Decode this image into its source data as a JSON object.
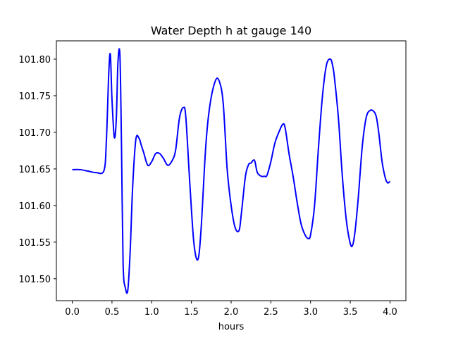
{
  "chart_data": {
    "type": "line",
    "title": "Water Depth h at gauge 140",
    "xlabel": "hours",
    "ylabel": "",
    "xlim": [
      -0.2,
      4.2
    ],
    "ylim": [
      101.47,
      101.825
    ],
    "xticks": [
      0.0,
      0.5,
      1.0,
      1.5,
      2.0,
      2.5,
      3.0,
      3.5,
      4.0
    ],
    "xtick_labels": [
      "0.0",
      "0.5",
      "1.0",
      "1.5",
      "2.0",
      "2.5",
      "3.0",
      "3.5",
      "4.0"
    ],
    "yticks": [
      101.5,
      101.55,
      101.6,
      101.65,
      101.7,
      101.75,
      101.8
    ],
    "ytick_labels": [
      "101.50",
      "101.55",
      "101.60",
      "101.65",
      "101.70",
      "101.75",
      "101.80"
    ],
    "grid": false,
    "line_color": "#0000ff",
    "series": [
      {
        "x": [
          0.0,
          0.1,
          0.2,
          0.3,
          0.4,
          0.43,
          0.46,
          0.48,
          0.5,
          0.53,
          0.555,
          0.575,
          0.6,
          0.62,
          0.64,
          0.67,
          0.7,
          0.73,
          0.76,
          0.8,
          0.84,
          0.87,
          0.9,
          0.95,
          1.0,
          1.05,
          1.1,
          1.15,
          1.2,
          1.25,
          1.3,
          1.35,
          1.4,
          1.43,
          1.48,
          1.53,
          1.58,
          1.62,
          1.68,
          1.73,
          1.8,
          1.85,
          1.9,
          1.95,
          2.0,
          2.05,
          2.1,
          2.13,
          2.18,
          2.22,
          2.25,
          2.28,
          2.3,
          2.33,
          2.38,
          2.42,
          2.45,
          2.5,
          2.55,
          2.6,
          2.65,
          2.68,
          2.73,
          2.78,
          2.83,
          2.88,
          2.93,
          2.97,
          3.0,
          3.05,
          3.1,
          3.15,
          3.2,
          3.25,
          3.28,
          3.3,
          3.35,
          3.4,
          3.45,
          3.5,
          3.53,
          3.56,
          3.6,
          3.65,
          3.7,
          3.75,
          3.8,
          3.83,
          3.86,
          3.9,
          3.94,
          3.97,
          4.0
        ],
        "y": [
          101.649,
          101.649,
          101.647,
          101.645,
          101.648,
          101.69,
          101.782,
          101.806,
          101.745,
          101.693,
          101.72,
          101.795,
          101.805,
          101.68,
          101.52,
          101.487,
          101.485,
          101.54,
          101.625,
          101.69,
          101.692,
          101.682,
          101.672,
          101.655,
          101.66,
          101.671,
          101.671,
          101.664,
          101.655,
          101.66,
          101.675,
          101.72,
          101.734,
          101.72,
          101.63,
          101.55,
          101.526,
          101.565,
          101.68,
          101.735,
          101.77,
          101.77,
          101.74,
          101.65,
          101.6,
          101.57,
          101.566,
          101.59,
          101.64,
          101.656,
          101.658,
          101.662,
          101.66,
          101.645,
          101.64,
          101.64,
          101.641,
          101.66,
          101.685,
          101.7,
          101.711,
          101.706,
          101.67,
          101.64,
          101.605,
          101.575,
          101.56,
          101.555,
          101.56,
          101.6,
          101.68,
          101.75,
          101.792,
          101.8,
          101.79,
          101.775,
          101.72,
          101.64,
          101.58,
          101.548,
          101.546,
          101.565,
          101.61,
          101.68,
          101.72,
          101.73,
          101.728,
          101.72,
          101.698,
          101.66,
          101.638,
          101.631,
          101.633
        ]
      }
    ]
  }
}
